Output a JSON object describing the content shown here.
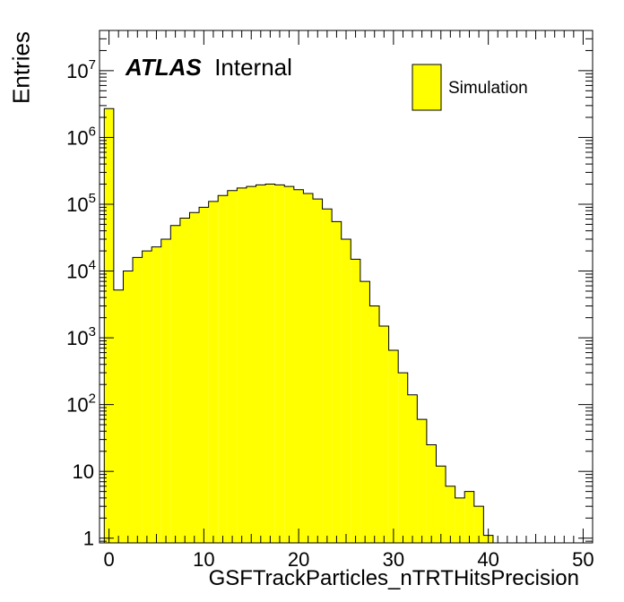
{
  "chart_data": {
    "type": "bar",
    "title": "",
    "xlabel": "GSFTrackParticles_nTRTHitsPrecision",
    "ylabel": "Entries",
    "y_scale": "log",
    "xlim": [
      -1,
      51
    ],
    "ylim": [
      0.85,
      40000000
    ],
    "x_ticks": [
      0,
      10,
      20,
      30,
      40,
      50
    ],
    "y_ticks": [
      "1",
      "10",
      "10^2",
      "10^3",
      "10^4",
      "10^5",
      "10^6",
      "10^7"
    ],
    "bin_edges_start": -0.5,
    "bin_width": 1,
    "series": [
      {
        "name": "Simulation",
        "color": "#ffff00",
        "values": [
          2700000,
          5200,
          10000,
          16000,
          20000,
          23000,
          30000,
          48000,
          62000,
          75000,
          90000,
          110000,
          135000,
          160000,
          175000,
          185000,
          195000,
          200000,
          195000,
          185000,
          165000,
          145000,
          120000,
          85000,
          55000,
          30000,
          15000,
          7000,
          3000,
          1500,
          650,
          300,
          140,
          60,
          25,
          12,
          6,
          4,
          5,
          3,
          1.1
        ]
      }
    ],
    "annotations": {
      "atlas": "ATLAS",
      "internal": "Internal"
    },
    "legend_position": "top-right",
    "grid": false
  }
}
